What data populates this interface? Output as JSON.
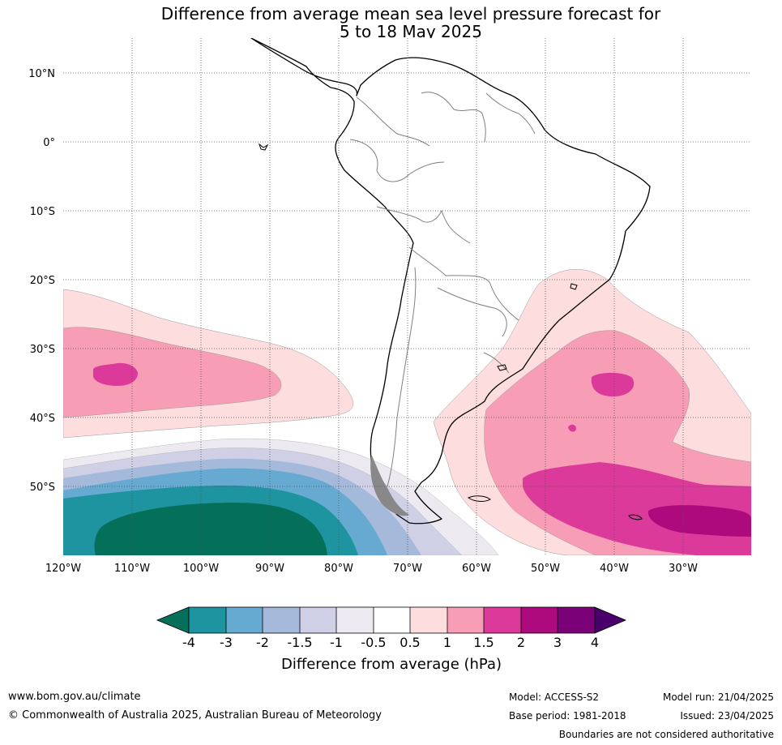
{
  "title": {
    "line1": "Difference from average mean sea level pressure forecast for",
    "line2": "5 to 18 May 2025"
  },
  "map": {
    "region": "South America and surrounding oceans",
    "lon_labels": [
      "120°W",
      "110°W",
      "100°W",
      "90°W",
      "80°W",
      "70°W",
      "60°W",
      "50°W",
      "40°W",
      "30°W"
    ],
    "lat_labels": [
      "10°N",
      "0°",
      "10°S",
      "20°S",
      "30°S",
      "40°S",
      "50°S"
    ],
    "gridlines": "dotted",
    "extent": {
      "lon_west": -120,
      "lon_east": -20,
      "lat_north": 15,
      "lat_south": -60
    }
  },
  "colorbar": {
    "labels": [
      "-4",
      "-3",
      "-2",
      "-1.5",
      "-1",
      "-0.5",
      "0.5",
      "1",
      "1.5",
      "2",
      "3",
      "4"
    ],
    "colors": {
      "below_min": "#05705a",
      "-4_to_-3": "#1d94a0",
      "-3_to_-2": "#67aad1",
      "-2_to_-1.5": "#a5b9da",
      "-1.5_to_-1": "#cfd0e5",
      "-1_to_-0.5": "#ede9f0",
      "-0.5_to_0.5": "#ffffff",
      "0.5_to_1": "#fddddd",
      "1_to_1.5": "#f89db6",
      "1.5_to_2": "#dc3a9a",
      "2_to_3": "#ad0a7d",
      "3_to_4": "#7a0177",
      "above_max": "#49006a"
    },
    "title": "Difference from average (hPa)"
  },
  "footer": {
    "url": "www.bom.gov.au/climate",
    "copyright": "© Commonwealth of Australia 2025, Australian Bureau of Meteorology",
    "model": "Model: ACCESS-S2",
    "base_period": "Base period: 1981-2018",
    "model_run": "Model run: 21/04/2025",
    "issued": "Issued: 23/04/2025",
    "boundaries_note": "Boundaries are not considered authoritative"
  }
}
